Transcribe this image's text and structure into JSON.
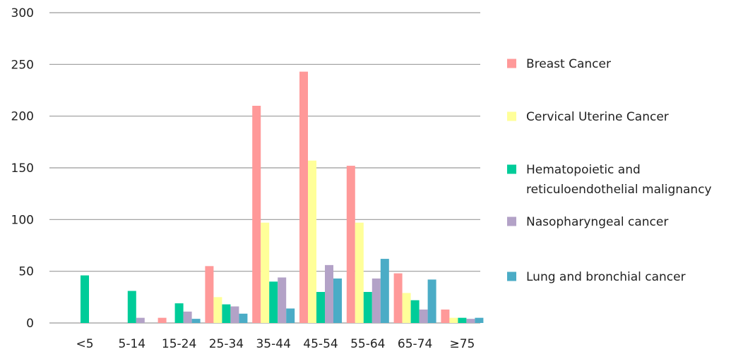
{
  "chart_data": {
    "type": "bar",
    "title": "",
    "xlabel": "",
    "ylabel": "",
    "ylim": [
      0,
      300
    ],
    "yticks": [
      "0",
      "50",
      "100",
      "150",
      "200",
      "250",
      "300"
    ],
    "grid": true,
    "legend_position": "right",
    "categories": [
      "<5",
      "5-14",
      "15-24",
      "25-34",
      "35-44",
      "45-54",
      "55-64",
      "65-74",
      "≥75"
    ],
    "series": [
      {
        "name": "Breast Cancer",
        "color": "#FF9999",
        "values": [
          0,
          0,
          5,
          55,
          210,
          243,
          152,
          48,
          13
        ]
      },
      {
        "name": "Cervical Uterine Cancer",
        "color": "#FFFF99",
        "values": [
          0,
          0,
          0,
          25,
          97,
          157,
          97,
          29,
          5
        ]
      },
      {
        "name": "Hematopoietic and reticuloendothelial malignancy",
        "color": "#00CC99",
        "values": [
          46,
          31,
          19,
          18,
          40,
          30,
          30,
          22,
          5
        ]
      },
      {
        "name": "Nasopharyngeal cancer",
        "color": "#B3A2C7",
        "values": [
          0,
          5,
          11,
          16,
          44,
          56,
          43,
          13,
          4
        ]
      },
      {
        "name": "Lung and bronchial cancer",
        "color": "#4BACC6",
        "values": [
          0,
          0,
          4,
          9,
          14,
          43,
          62,
          42,
          5
        ]
      }
    ],
    "legend": [
      {
        "lines": [
          "Breast Cancer"
        ]
      },
      {
        "lines": [
          "Cervical Uterine Cancer"
        ]
      },
      {
        "lines": [
          "Hematopoietic and",
          "reticuloendothelial malignancy"
        ]
      },
      {
        "lines": [
          "Nasopharyngeal cancer"
        ]
      },
      {
        "lines": [
          "Lung and bronchial cancer"
        ]
      }
    ]
  }
}
